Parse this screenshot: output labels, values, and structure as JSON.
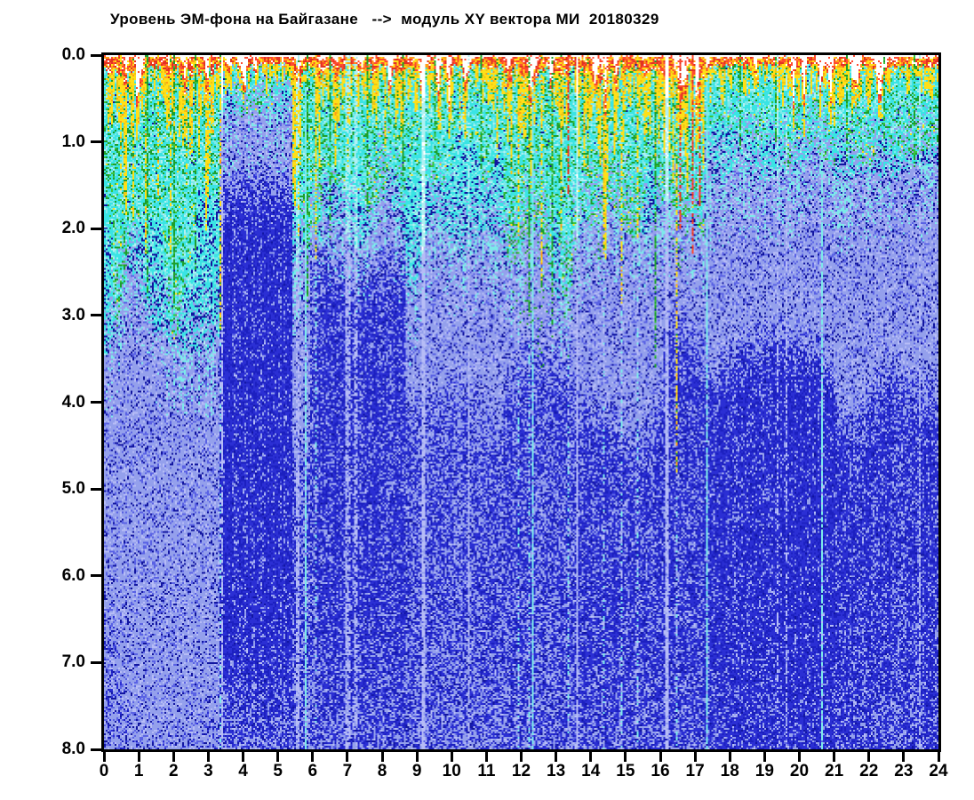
{
  "chart_data": {
    "type": "heatmap",
    "title": "Уровень ЭМ-фона на Байгазане   -->  модуль XY вектора МИ  20180329",
    "subtitle": "",
    "x_axis": {
      "min": 0,
      "max": 24,
      "tick_step": 1,
      "tick_labels": [
        "0",
        "1",
        "2",
        "3",
        "4",
        "5",
        "6",
        "7",
        "8",
        "9",
        "10",
        "11",
        "12",
        "13",
        "14",
        "15",
        "16",
        "17",
        "18",
        "19",
        "20",
        "21",
        "22",
        "23",
        "24"
      ]
    },
    "y_axis": {
      "min": 0.0,
      "max": 8.0,
      "tick_step": 1.0,
      "inverted": true,
      "tick_labels": [
        "0.0",
        "1.0",
        "2.0",
        "3.0",
        "4.0",
        "5.0",
        "6.0",
        "7.0",
        "8.0"
      ]
    },
    "grid": false,
    "legend": "none",
    "palette": {
      "white": "#ffffff",
      "red": "#e23222",
      "red2": "#ff4a30",
      "orange": "#ff9d17",
      "yellow": "#ffdf17",
      "yellow2": "#edc514",
      "green": "#1d9f2c",
      "green2": "#3cc43a",
      "cyan": "#3ae4e4",
      "cyan2": "#7ceaea",
      "cyan3": "#b0f0f2",
      "peri": "#94a0ec",
      "peri2": "#b6bcf6",
      "mid": "#5a62e4",
      "dark": "#2b2fd4",
      "dark2": "#1c20c0",
      "navy": "#1216a0"
    },
    "render": {
      "seed": 20180329,
      "segments": [
        {
          "t1": 3.33,
          "warm": 0.85,
          "green": 2.6,
          "cyan": 2.8,
          "dark_start": 6.8,
          "dark_dens": 0.15,
          "floor_fade": 0.1
        },
        {
          "t1": 5.42,
          "warm": 0.28,
          "green": 0.55,
          "cyan": 0.62,
          "dark_start": 1.25,
          "dark_dens": 0.84,
          "floor_fade": 0.5
        },
        {
          "t1": 5.9,
          "warm": 1.05,
          "green": 2.7,
          "cyan": 2.5,
          "dark_start": 4.4,
          "dark_dens": 0.5,
          "floor_fade": 0.25
        },
        {
          "t1": 6.3,
          "warm": 1.0,
          "green": 2.5,
          "cyan": 2.2,
          "dark_start": 2.2,
          "dark_dens": 0.62,
          "floor_fade": 0.3
        },
        {
          "t1": 8.7,
          "warm": 0.62,
          "green": 1.7,
          "cyan": 1.8,
          "dark_start": 2.15,
          "dark_dens": 0.68,
          "floor_fade": 0.3
        },
        {
          "t1": 11.5,
          "warm": 0.45,
          "green": 1.35,
          "cyan": 2.25,
          "dark_start": 3.9,
          "dark_dens": 0.46,
          "floor_fade": 0.2
        },
        {
          "t1": 13.5,
          "warm": 0.95,
          "green": 2.7,
          "cyan": 2.35,
          "dark_start": 3.5,
          "dark_dens": 0.54,
          "floor_fade": 0.2
        },
        {
          "t1": 16.1,
          "warm": 0.8,
          "green": 2.1,
          "cyan": 1.95,
          "dark_start": 3.9,
          "dark_dens": 0.6,
          "floor_fade": 0.2
        },
        {
          "t1": 17.25,
          "warm": 1.15,
          "green": 2.3,
          "cyan": 1.8,
          "dark_start": 3.0,
          "dark_dens": 0.62,
          "floor_fade": 0.2
        },
        {
          "t1": 21.0,
          "warm": 0.3,
          "green": 1.0,
          "cyan": 1.2,
          "dark_start": 3.2,
          "dark_dens": 0.8,
          "floor_fade": 0.15
        },
        {
          "t1": 24.0,
          "warm": 0.35,
          "green": 1.25,
          "cyan": 1.3,
          "dark_start": 3.5,
          "dark_dens": 0.68,
          "floor_fade": 0.2
        }
      ],
      "deep_streaks": [
        {
          "t": 0.45,
          "d": 1.6,
          "c": "yellow"
        },
        {
          "t": 0.8,
          "d": 1.9,
          "c": "yellow"
        },
        {
          "t": 1.15,
          "d": 2.3,
          "c": "yellow"
        },
        {
          "t": 1.22,
          "d": 2.8,
          "c": "green"
        },
        {
          "t": 1.55,
          "d": 1.7,
          "c": "yellow"
        },
        {
          "t": 1.9,
          "d": 2.3,
          "c": "yellow"
        },
        {
          "t": 1.97,
          "d": 2.9,
          "c": "green"
        },
        {
          "t": 2.35,
          "d": 1.5,
          "c": "yellow"
        },
        {
          "t": 2.6,
          "d": 2.5,
          "c": "green"
        },
        {
          "t": 3.0,
          "d": 1.3,
          "c": "yellow"
        },
        {
          "t": 3.31,
          "d": 3.2,
          "c": "yellow",
          "tail": true
        },
        {
          "t": 5.55,
          "d": 2.1,
          "c": "yellow"
        },
        {
          "t": 5.82,
          "d": 2.9,
          "c": "green"
        },
        {
          "t": 6.08,
          "d": 2.4,
          "c": "yellow",
          "tail": true
        },
        {
          "t": 6.5,
          "d": 2.1,
          "c": "green"
        },
        {
          "t": 7.0,
          "d": 1.3,
          "c": "yellow"
        },
        {
          "t": 7.55,
          "d": 1.7,
          "c": "green"
        },
        {
          "t": 8.05,
          "d": 1.1,
          "c": "yellow"
        },
        {
          "t": 8.6,
          "d": 1.4,
          "c": "green"
        },
        {
          "t": 9.5,
          "d": 1.2,
          "c": "green"
        },
        {
          "t": 10.2,
          "d": 1.0,
          "c": "yellow"
        },
        {
          "t": 10.85,
          "d": 1.3,
          "c": "green"
        },
        {
          "t": 11.3,
          "d": 1.2,
          "c": "yellow"
        },
        {
          "t": 11.9,
          "d": 2.1,
          "c": "yellow",
          "tail": true
        },
        {
          "t": 12.2,
          "d": 3.0,
          "c": "green",
          "tail": true
        },
        {
          "t": 12.55,
          "d": 2.7,
          "c": "yellow"
        },
        {
          "t": 12.85,
          "d": 3.3,
          "c": "green"
        },
        {
          "t": 13.1,
          "d": 2.0,
          "c": "yellow"
        },
        {
          "t": 13.35,
          "d": 1.6,
          "c": "red",
          "tail": true
        },
        {
          "t": 13.9,
          "d": 1.4,
          "c": "yellow"
        },
        {
          "t": 14.35,
          "d": 2.3,
          "c": "yellow",
          "tail": true
        },
        {
          "t": 14.85,
          "d": 2.9,
          "c": "yellow",
          "tail": true
        },
        {
          "t": 15.3,
          "d": 2.1,
          "c": "yellow",
          "tail": true
        },
        {
          "t": 15.85,
          "d": 3.6,
          "c": "green"
        },
        {
          "t": 16.45,
          "d": 4.8,
          "c": "yellow",
          "tail": true
        },
        {
          "t": 16.52,
          "d": 2.0,
          "c": "red"
        },
        {
          "t": 16.9,
          "d": 2.3,
          "c": "red"
        },
        {
          "t": 17.1,
          "d": 1.8,
          "c": "red"
        },
        {
          "t": 18.3,
          "d": 1.1,
          "c": "green"
        },
        {
          "t": 19.3,
          "d": 1.0,
          "c": "green"
        },
        {
          "t": 21.35,
          "d": 1.2,
          "c": "green"
        },
        {
          "t": 22.4,
          "d": 1.1,
          "c": "green"
        },
        {
          "t": 23.3,
          "d": 1.3,
          "c": "green"
        }
      ],
      "gaps": [
        {
          "t": 3.36,
          "w": 1,
          "kind": "white"
        },
        {
          "t": 5.5,
          "w": 2,
          "kind": "faint"
        },
        {
          "t": 5.78,
          "w": 1,
          "kind": "cyan"
        },
        {
          "t": 6.95,
          "w": 3,
          "kind": "faint"
        },
        {
          "t": 7.2,
          "w": 2,
          "kind": "faint"
        },
        {
          "t": 9.13,
          "w": 2,
          "kind": "white"
        },
        {
          "t": 10.45,
          "w": 1,
          "kind": "faint"
        },
        {
          "t": 12.3,
          "w": 1,
          "kind": "cyan"
        },
        {
          "t": 13.6,
          "w": 1,
          "kind": "white"
        },
        {
          "t": 16.13,
          "w": 2,
          "kind": "white"
        },
        {
          "t": 17.3,
          "w": 1,
          "kind": "cyan"
        },
        {
          "t": 19.35,
          "w": 1,
          "kind": "faint"
        },
        {
          "t": 19.6,
          "w": 1,
          "kind": "faint"
        },
        {
          "t": 20.64,
          "w": 1,
          "kind": "cyan"
        },
        {
          "t": 23.45,
          "w": 1,
          "kind": "faint"
        }
      ]
    }
  }
}
